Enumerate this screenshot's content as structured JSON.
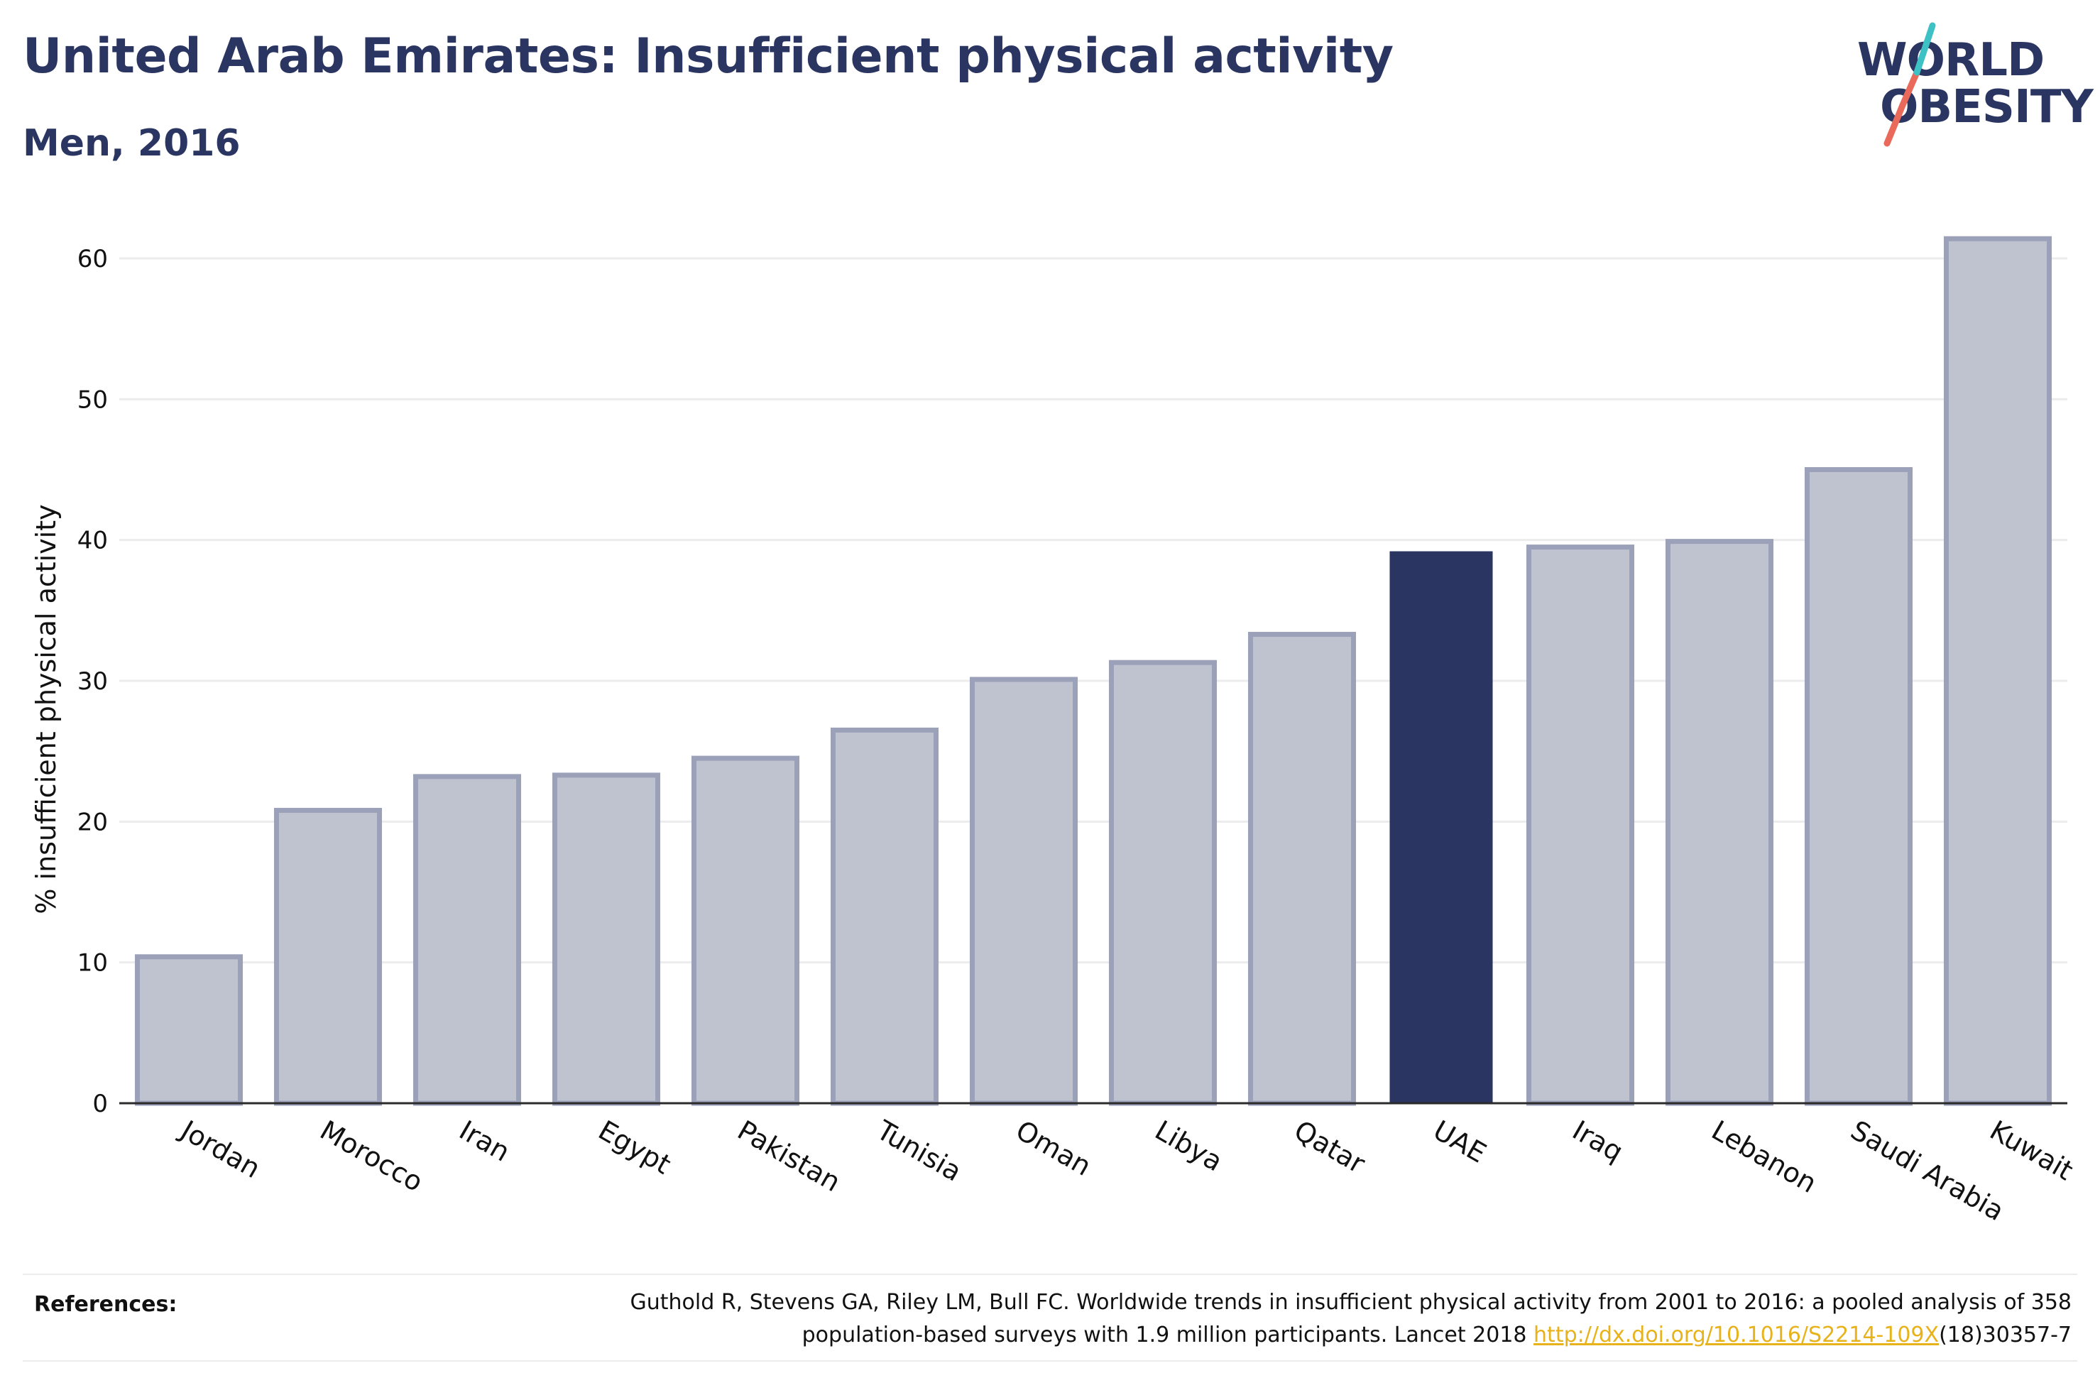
{
  "header": {
    "title": "United Arab Emirates: Insufficient physical activity",
    "subtitle": "Men, 2016"
  },
  "logo": {
    "line1": "WORLD",
    "line2": "OBESITY"
  },
  "colors": {
    "navy": "#2a3561",
    "bar_fill": "#bfc3d0",
    "bar_stroke": "#9ba1b8",
    "highlight": "#2a3561",
    "grid": "#ececec",
    "link": "#e8b21a",
    "logo_teal": "#3ec1c4",
    "logo_coral": "#e96a5a"
  },
  "chart_data": {
    "type": "bar",
    "title": "",
    "xlabel": "",
    "ylabel": "% insufficient physical activity",
    "ylim": [
      0,
      63
    ],
    "yticks": [
      0,
      10,
      20,
      30,
      40,
      50,
      60
    ],
    "grid": true,
    "highlight_category": "UAE",
    "categories": [
      "Jordan",
      "Morocco",
      "Iran",
      "Egypt",
      "Pakistan",
      "Tunisia",
      "Oman",
      "Libya",
      "Qatar",
      "UAE",
      "Iraq",
      "Lebanon",
      "Saudi Arabia",
      "Kuwait"
    ],
    "values": [
      10.4,
      20.8,
      23.2,
      23.3,
      24.5,
      26.5,
      30.1,
      31.3,
      33.3,
      39.2,
      39.5,
      39.9,
      45.0,
      61.4
    ]
  },
  "references": {
    "label": "References:",
    "line1": "Guthold R, Stevens GA, Riley LM, Bull FC. Worldwide trends in insufficient physical activity from 2001 to 2016: a pooled analysis of 358",
    "line2_prefix": "population-based surveys with 1.9 million participants. Lancet 2018 ",
    "link_text": "http://dx.doi.org/10.1016/S2214-109X",
    "line2_suffix": "(18)30357-7"
  }
}
